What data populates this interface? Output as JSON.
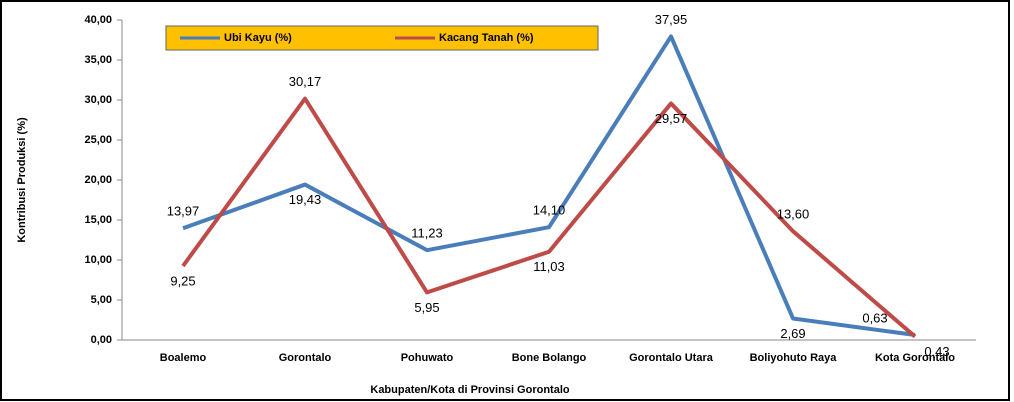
{
  "chart_data": {
    "type": "line",
    "x_label": "Kabupaten/Kota di Provinsi Gorontalo",
    "y_label": "Kontribusi Produksi (%)",
    "categories": [
      "Boalemo",
      "Gorontalo",
      "Pohuwato",
      "Bone Bolango",
      "Gorontalo Utara",
      "Boliyohuto Raya",
      "Kota Gorontalo"
    ],
    "series": [
      {
        "name": "Ubi Kayu (%)",
        "color": "#4a7ebb",
        "values": [
          13.97,
          19.43,
          11.23,
          14.1,
          37.95,
          2.69,
          0.63
        ],
        "value_labels": [
          "13,97",
          "19,43",
          "11,23",
          "14,10",
          "37,95",
          "2,69",
          "0,63"
        ]
      },
      {
        "name": "Kacang Tanah (%)",
        "color": "#be4b48",
        "values": [
          9.25,
          30.17,
          5.95,
          11.03,
          29.57,
          13.6,
          0.43
        ],
        "value_labels": [
          "9,25",
          "30,17",
          "5,95",
          "11,03",
          "29,57",
          "13,60",
          "0,43"
        ]
      }
    ],
    "ylim": [
      0,
      40
    ],
    "yticks": [
      {
        "value": 0,
        "label": "0,00"
      },
      {
        "value": 5,
        "label": "5,00"
      },
      {
        "value": 10,
        "label": "10,00"
      },
      {
        "value": 15,
        "label": "15,00"
      },
      {
        "value": 20,
        "label": "20,00"
      },
      {
        "value": 25,
        "label": "25,00"
      },
      {
        "value": 30,
        "label": "30,00"
      },
      {
        "value": 35,
        "label": "35,00"
      },
      {
        "value": 40,
        "label": "40,00"
      }
    ],
    "legend": "top-left"
  }
}
